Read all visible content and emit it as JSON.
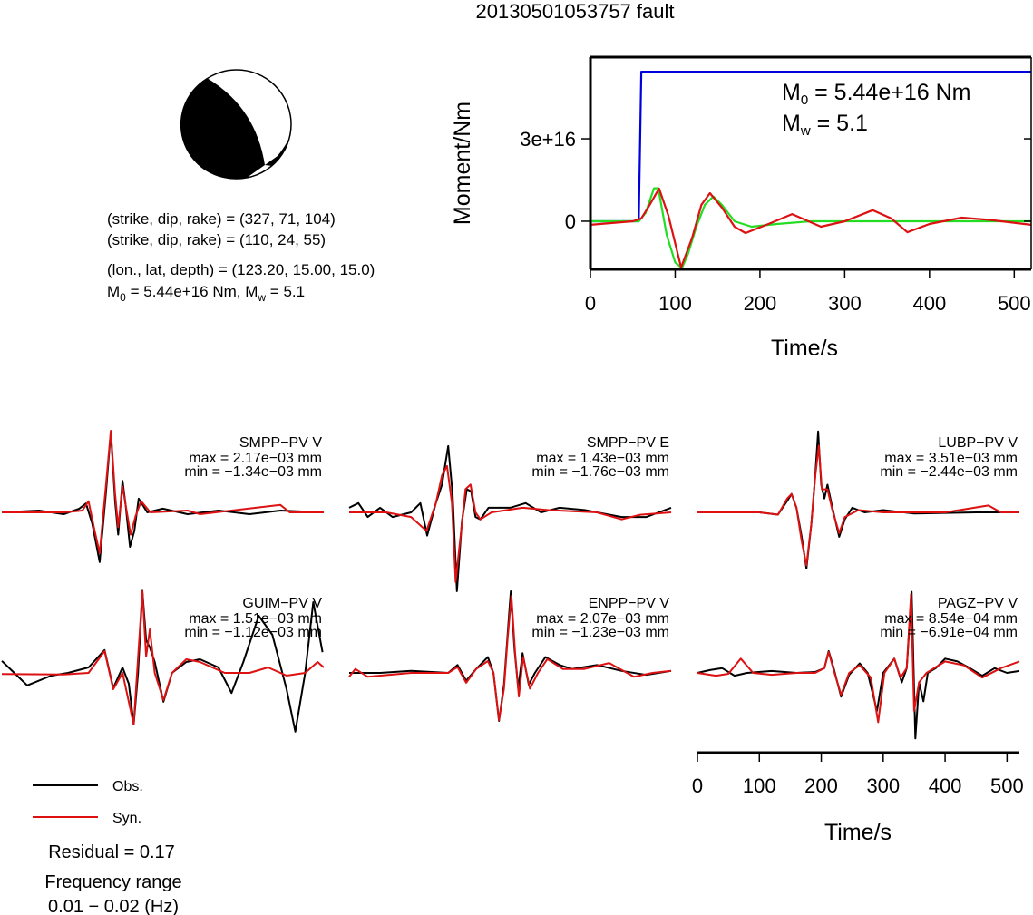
{
  "title": "20130501053757 fault",
  "focal_mechanism": {
    "planes": [
      "(strike, dip, rake) = (327, 71, 104)",
      "(strike, dip, rake) = (110, 24, 55)"
    ],
    "location": "(lon., lat, depth) = (123.20, 15.00, 15.0)",
    "moment": [
      {
        "symbol": "M",
        "sub": "0",
        "text": " = 5.44e+16 Nm, "
      },
      {
        "symbol": "M",
        "sub": "w",
        "text": " = 5.1"
      }
    ]
  },
  "chart_data": [
    {
      "type": "line",
      "xlabel": "Time/s",
      "ylabel": "Moment/Nm",
      "xlim": [
        0,
        520
      ],
      "ylim": [
        -1.75e+16,
        5.97e+16
      ],
      "xticks": [
        0,
        100,
        200,
        300,
        400,
        500
      ],
      "yticks": [
        0,
        {
          "value": 3e+16,
          "label": "3e+16"
        }
      ],
      "annotations": [
        {
          "symbol": "M",
          "sub": "0",
          "text": " = 5.44e+16 Nm"
        },
        {
          "symbol": "M",
          "sub": "w",
          "text": " = 5.1"
        }
      ],
      "series": [
        {
          "color": "#0000dd",
          "x": [
            0,
            57,
            60,
            520
          ],
          "values": [
            0,
            0,
            5.44e+16,
            5.44e+16
          ]
        },
        {
          "color": "#22dd22",
          "x": [
            0,
            57,
            65,
            75,
            80,
            90,
            100,
            108,
            115,
            125,
            135,
            145,
            155,
            170,
            190,
            220,
            260,
            520
          ],
          "values": [
            0,
            0,
            3000000000000000.0,
            1.2e+16,
            1.2e+16,
            -5000000000000000.0,
            -1.5e+16,
            -1.7e+16,
            -1.2e+16,
            -2000000000000000.0,
            6000000000000000.0,
            9000000000000000.0,
            6000000000000000.0,
            0,
            -2000000000000000.0,
            -1000000000000000.0,
            0,
            0
          ]
        },
        {
          "color": "#dd1111",
          "x": [
            0,
            50,
            60,
            70,
            81,
            92,
            107,
            120,
            131,
            141,
            155,
            170,
            183,
            210,
            238,
            272,
            300,
            333,
            355,
            374,
            400,
            438,
            470,
            520
          ],
          "values": [
            -1300000000000000.0,
            0,
            1000000000000000.0,
            6000000000000000.0,
            1.19e+16,
            2000000000000000.0,
            -1.68e+16,
            -6000000000000000.0,
            6000000000000000.0,
            1.02e+16,
            5000000000000000.0,
            -2000000000000000.0,
            -4300000000000000.0,
            -1000000000000000.0,
            2600000000000000.0,
            -2000000000000000.0,
            0,
            4000000000000000.0,
            1000000000000000.0,
            -4000000000000000.0,
            -1000000000000000.0,
            1300000000000000.0,
            500000000000000.0,
            -1300000000000000.0
          ]
        }
      ]
    },
    {
      "type": "waveform",
      "xlabel": "Time/s",
      "xlim": [
        0,
        520
      ],
      "xticks": [
        0,
        100,
        200,
        300,
        400,
        500
      ],
      "legend": [
        {
          "name": "Obs.",
          "color": "#000000"
        },
        {
          "name": "Syn.",
          "color": "#dd1111"
        }
      ],
      "residual": "Residual = 0.17",
      "frequency_range": [
        "Frequency range",
        "0.01 − 0.02 (Hz)"
      ],
      "panels": [
        {
          "station": "SMPP−PV V",
          "max": "max = 2.17e−03 mm",
          "min": "min = −1.34e−03 mm",
          "ylim": [
            -0.0022,
            0.0022
          ],
          "obs": {
            "x": [
              0,
              60,
              100,
              125,
              136,
              146,
              158,
              168,
              176,
              183,
              188,
              195,
              200,
              207,
              214,
              221,
              235,
              260,
              300,
              350,
              400,
              450,
              520
            ],
            "values": [
              0,
              5e-05,
              -5e-05,
              0.0001,
              0.00024,
              -0.0003,
              -0.00134,
              0.0005,
              0.00217,
              0.0003,
              -0.0006,
              0.00085,
              0.0002,
              -0.00093,
              -0.0005,
              0.00037,
              0,
              0.0001,
              -5e-05,
              5e-05,
              -5e-05,
              5e-05,
              0
            ]
          },
          "syn": {
            "x": [
              0,
              100,
              130,
              140,
              150,
              158,
              168,
              176,
              183,
              188,
              195,
              202,
              208,
              216,
              225,
              240,
              300,
              320,
              450,
              465,
              520
            ],
            "values": [
              0,
              0,
              5e-05,
              0.0003,
              -0.0005,
              -0.0011,
              0.0007,
              0.0022,
              0.0005,
              -0.0004,
              0.0007,
              0,
              -0.0006,
              -0.0001,
              0.0003,
              0,
              5e-05,
              -5e-05,
              0.0002,
              0,
              0
            ]
          }
        },
        {
          "station": "SMPP−PV E",
          "max": "max = 1.43e−03 mm",
          "min": "min = −1.76e−03 mm",
          "ylim": [
            -0.00176,
            0.00176
          ],
          "obs": {
            "x": [
              0,
              15,
              30,
              50,
              70,
              100,
              115,
              126,
              140,
              150,
              160,
              167,
              174,
              182,
              190,
              197,
              204,
              212,
              225,
              260,
              285,
              310,
              340,
              380,
              440,
              480,
              500,
              520
            ],
            "values": [
              0.0001,
              0.0002,
              -0.0001,
              0.0001,
              -0.0001,
              0,
              0.0002,
              -0.0005,
              0.0002,
              0.0006,
              0.00143,
              0.0004,
              -0.0017,
              -0.0002,
              0.0005,
              0.00045,
              -0.0001,
              -0.00015,
              0.0001,
              0.0001,
              0.0002,
              0,
              0.0001,
              5e-05,
              -0.0001,
              -0.0001,
              0,
              0.0001
            ]
          },
          "syn": {
            "x": [
              0,
              60,
              100,
              125,
              140,
              150,
              158,
              166,
              172,
              180,
              188,
              196,
              204,
              212,
              230,
              280,
              320,
              400,
              440,
              470,
              520
            ],
            "values": [
              0,
              0,
              -0.0001,
              -0.0004,
              0.0002,
              0.0008,
              0.001,
              0.0002,
              -0.0015,
              -0.0005,
              0.0005,
              0.0006,
              0,
              -0.00015,
              0,
              0.0001,
              5e-05,
              0,
              -0.00015,
              -5e-05,
              0
            ]
          }
        },
        {
          "station": "LUBP−PV V",
          "max": "max = 3.51e−03 mm",
          "min": "min = −2.44e−03 mm",
          "ylim": [
            -0.00354,
            0.00354
          ],
          "obs": {
            "x": [
              0,
              100,
              130,
              145,
              152,
              160,
              168,
              176,
              184,
              190,
              195,
              200,
              205,
              210,
              218,
              229,
              238,
              250,
              270,
              300,
              350,
              450,
              520
            ],
            "values": [
              0,
              0,
              -0.0001,
              0.0005,
              0.0008,
              0.0002,
              -0.001,
              -0.00244,
              -0.0005,
              0.0015,
              0.00351,
              0.0012,
              0.0006,
              0.0012,
              0.0002,
              -0.00106,
              -0.0003,
              0.0002,
              0,
              0.0001,
              -5e-05,
              0,
              0
            ]
          },
          "syn": {
            "x": [
              0,
              100,
              130,
              145,
              152,
              160,
              168,
              176,
              184,
              190,
              196,
              201,
              210,
              218,
              229,
              238,
              260,
              300,
              400,
              470,
              490,
              520
            ],
            "values": [
              0,
              0,
              -0.0001,
              0.0006,
              0.0008,
              0.0002,
              -0.0012,
              -0.0023,
              -0.0005,
              0.0015,
              0.0029,
              0.001,
              0.001,
              0.0001,
              -0.0009,
              -0.0002,
              0.0001,
              0,
              0,
              0.0003,
              0,
              0
            ]
          }
        },
        {
          "station": "GUIM−PV V",
          "max": "max = 1.51e−03 mm",
          "min": "min = −1.12e−03 mm",
          "ylim": [
            -0.0015,
            0.0015
          ],
          "obs": {
            "x": [
              0,
              20,
              41,
              80,
              107,
              140,
              166,
              180,
              195,
              205,
              213,
              220,
              227,
              233,
              239,
              247,
              261,
              275,
              298,
              320,
              350,
              371,
              390,
              415,
              437,
              460,
              474,
              490,
              503,
              518
            ],
            "values": [
              0.00022,
              0,
              -0.00023,
              -5e-05,
              0,
              0.0001,
              0.00042,
              -0.00028,
              0.0001,
              -0.0002,
              -0.00095,
              0,
              0.00151,
              0.0006,
              0.00047,
              0.0002,
              -0.00053,
              0,
              0.0002,
              0.00025,
              0.0001,
              -0.00037,
              0.0002,
              0.00105,
              0.0007,
              -0.0003,
              -0.00108,
              0,
              0.0013,
              0.00038
            ]
          },
          "syn": {
            "x": [
              0,
              100,
              140,
              166,
              180,
              195,
              213,
              227,
              233,
              239,
              247,
              261,
              275,
              298,
              320,
              360,
              400,
              430,
              460,
              490,
              510,
              520
            ],
            "values": [
              -2e-05,
              -3e-05,
              0,
              0.0004,
              -0.0003,
              0,
              -0.00095,
              0.0015,
              0.0003,
              0.0008,
              0,
              -0.0005,
              0,
              0.00025,
              0.0002,
              0,
              0,
              0.0001,
              -5e-05,
              0,
              0.0002,
              0.0001
            ]
          }
        },
        {
          "station": "ENPP−PV V",
          "max": "max = 2.07e−03 mm",
          "min": "min = −1.23e−03 mm",
          "ylim": [
            -0.00207,
            0.00207
          ],
          "obs": {
            "x": [
              0,
              50,
              100,
              160,
              175,
              189,
              205,
              224,
              233,
              242,
              250,
              256,
              261,
              267,
              273,
              280,
              290,
              300,
              317,
              340,
              360,
              400,
              440,
              480,
              520
            ],
            "values": [
              0,
              0,
              5e-05,
              0,
              0.0002,
              -0.0002,
              0.0001,
              0.0004,
              0,
              -0.00122,
              -0.0003,
              0.001,
              0.00207,
              0.0006,
              -0.0004,
              0.0005,
              -0.0003,
              0,
              0.0004,
              0.0002,
              0.0001,
              0.0002,
              5e-05,
              -5e-05,
              5e-05
            ]
          },
          "syn": {
            "x": [
              0,
              10,
              30,
              100,
              160,
              175,
              189,
              205,
              224,
              233,
              242,
              250,
              256,
              262,
              268,
              274,
              281,
              292,
              305,
              320,
              345,
              380,
              420,
              460,
              490,
              520
            ],
            "values": [
              -0.0001,
              0.0001,
              -0.0001,
              0,
              0,
              0.00015,
              -0.00025,
              0.0001,
              0.0003,
              0,
              -0.0012,
              -0.0004,
              0.0009,
              0.00195,
              0.0005,
              -0.0006,
              0.0004,
              -0.0004,
              0,
              0.00035,
              0.0001,
              0.0001,
              0.00025,
              -0.0001,
              0,
              5e-05
            ]
          }
        },
        {
          "station": "PAGZ−PV V",
          "max": "max = 8.54e−04 mm",
          "min": "min = −6.91e−04 mm",
          "ylim": [
            -0.00086,
            0.00086
          ],
          "obs": {
            "x": [
              0,
              20,
              40,
              60,
              80,
              120,
              160,
              190,
              205,
              212,
              220,
              232,
              245,
              262,
              275,
              290,
              300,
              318,
              330,
              338,
              346,
              352,
              358,
              365,
              372,
              385,
              400,
              420,
              440,
              460,
              480,
              500,
              520
            ],
            "values": [
              0,
              3e-05,
              5e-05,
              -3e-05,
              0,
              2e-05,
              0,
              1e-05,
              5e-05,
              0.00023,
              5e-05,
              -0.00025,
              -2e-05,
              0.0001,
              0,
              -0.0004,
              0,
              0.00015,
              -0.0001,
              5e-05,
              0.000854,
              -0.000691,
              -0.0001,
              -0.0003,
              0,
              5e-05,
              0.00015,
              0.00012,
              5e-05,
              -3e-05,
              5e-05,
              0,
              2e-05
            ]
          },
          "syn": {
            "x": [
              0,
              30,
              50,
              70,
              90,
              120,
              160,
              190,
              205,
              212,
              220,
              232,
              245,
              262,
              280,
              292,
              302,
              318,
              328,
              338,
              345,
              350,
              358,
              370,
              400,
              430,
              460,
              490,
              520
            ],
            "values": [
              0,
              -3e-05,
              -1e-05,
              0.00015,
              0,
              -2e-05,
              0,
              0,
              5e-05,
              0.00022,
              3e-05,
              -0.00023,
              0,
              8e-05,
              -5e-05,
              -0.00052,
              0,
              0.00015,
              -5e-05,
              5e-05,
              0.00083,
              -0.0004,
              -0.0001,
              0,
              0.00012,
              8e-05,
              -5e-05,
              5e-05,
              0.00012
            ]
          }
        }
      ]
    }
  ]
}
